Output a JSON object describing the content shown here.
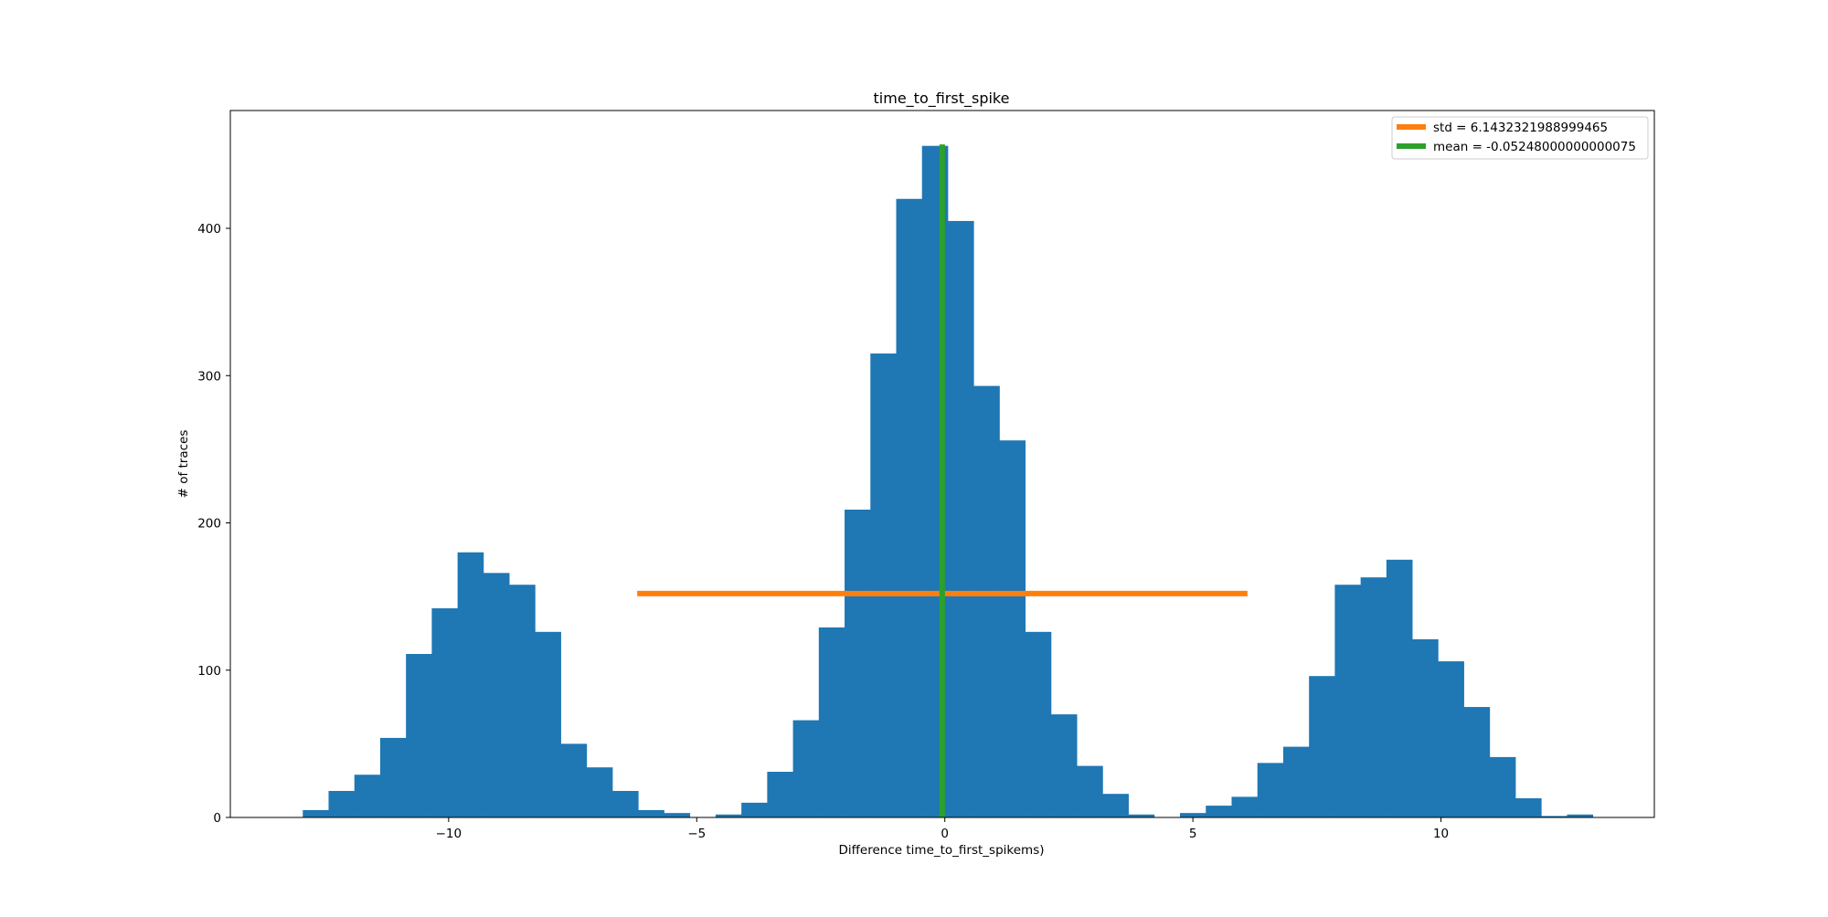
{
  "chart_data": {
    "type": "bar",
    "title": "time_to_first_spike",
    "xlabel": "Difference time_to_first_spikems)",
    "ylabel": "# of traces",
    "xlim": [
      -14.4,
      14.3
    ],
    "ylim": [
      0,
      480
    ],
    "grid": false,
    "legend_position": "top-right",
    "x_ticks": [
      -10,
      -5,
      0,
      5,
      10
    ],
    "y_ticks": [
      0,
      100,
      200,
      300,
      400
    ],
    "bin_width": 0.52,
    "bins": [
      {
        "x0": -12.94,
        "count": 5
      },
      {
        "x0": -12.42,
        "count": 18
      },
      {
        "x0": -11.9,
        "count": 29
      },
      {
        "x0": -11.38,
        "count": 54
      },
      {
        "x0": -10.86,
        "count": 111
      },
      {
        "x0": -10.34,
        "count": 142
      },
      {
        "x0": -9.82,
        "count": 180
      },
      {
        "x0": -9.3,
        "count": 166
      },
      {
        "x0": -8.78,
        "count": 158
      },
      {
        "x0": -8.26,
        "count": 126
      },
      {
        "x0": -7.74,
        "count": 50
      },
      {
        "x0": -7.22,
        "count": 34
      },
      {
        "x0": -6.7,
        "count": 18
      },
      {
        "x0": -6.18,
        "count": 5
      },
      {
        "x0": -5.66,
        "count": 3
      },
      {
        "x0": -5.14,
        "count": 0
      },
      {
        "x0": -4.62,
        "count": 2
      },
      {
        "x0": -4.1,
        "count": 10
      },
      {
        "x0": -3.58,
        "count": 31
      },
      {
        "x0": -3.06,
        "count": 66
      },
      {
        "x0": -2.54,
        "count": 129
      },
      {
        "x0": -2.02,
        "count": 209
      },
      {
        "x0": -1.5,
        "count": 315
      },
      {
        "x0": -0.98,
        "count": 420
      },
      {
        "x0": -0.46,
        "count": 456
      },
      {
        "x0": 0.06,
        "count": 405
      },
      {
        "x0": 0.58,
        "count": 293
      },
      {
        "x0": 1.1,
        "count": 256
      },
      {
        "x0": 1.62,
        "count": 126
      },
      {
        "x0": 2.14,
        "count": 70
      },
      {
        "x0": 2.66,
        "count": 35
      },
      {
        "x0": 3.18,
        "count": 16
      },
      {
        "x0": 3.7,
        "count": 2
      },
      {
        "x0": 4.22,
        "count": 0
      },
      {
        "x0": 4.74,
        "count": 3
      },
      {
        "x0": 5.26,
        "count": 8
      },
      {
        "x0": 5.78,
        "count": 14
      },
      {
        "x0": 6.3,
        "count": 37
      },
      {
        "x0": 6.82,
        "count": 48
      },
      {
        "x0": 7.34,
        "count": 96
      },
      {
        "x0": 7.86,
        "count": 158
      },
      {
        "x0": 8.38,
        "count": 163
      },
      {
        "x0": 8.9,
        "count": 175
      },
      {
        "x0": 9.42,
        "count": 121
      },
      {
        "x0": 9.94,
        "count": 106
      },
      {
        "x0": 10.46,
        "count": 75
      },
      {
        "x0": 10.98,
        "count": 41
      },
      {
        "x0": 11.5,
        "count": 13
      },
      {
        "x0": 12.02,
        "count": 1
      },
      {
        "x0": 12.54,
        "count": 2
      }
    ],
    "bar_color": "#1f77b4",
    "lines": [
      {
        "name": "std = 6.1432321988999465",
        "color": "#ff7f0e",
        "orientation": "horizontal",
        "x": [
          -6.2,
          6.1
        ],
        "y": 152
      },
      {
        "name": "mean = -0.05248000000000075",
        "color": "#2ca02c",
        "orientation": "vertical",
        "x": -0.05248,
        "y": [
          0,
          457
        ]
      }
    ]
  }
}
